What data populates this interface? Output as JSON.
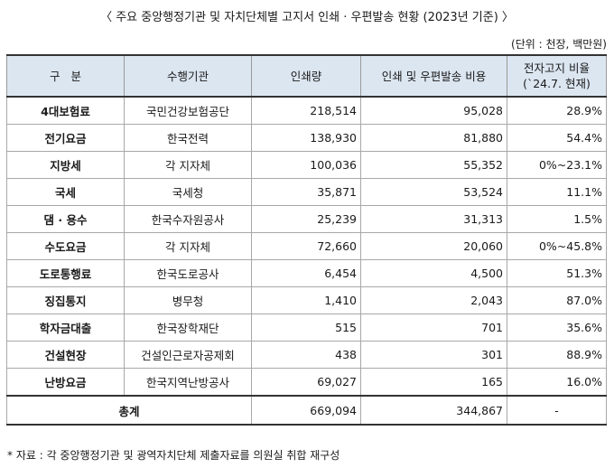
{
  "title": "〈 주요 중앙행정기관 및 자치단체별 고지서 인쇄 · 우편발송 현황 (2023년 기준) 〉",
  "unit_note": "(단위 : 천장, 백만원)",
  "headers": {
    "category": "구   분",
    "agency": "수행기관",
    "print_volume": "인쇄량",
    "cost": "인쇄 및 우편발송 비용",
    "ratio_line1": "전자고지 비율",
    "ratio_line2": "(`24.7. 현재)"
  },
  "rows": [
    {
      "category": "4대보험료",
      "agency": "국민건강보험공단",
      "volume": "218,514",
      "cost": "95,028",
      "ratio": "28.9%"
    },
    {
      "category": "전기요금",
      "agency": "한국전력",
      "volume": "138,930",
      "cost": "81,880",
      "ratio": "54.4%"
    },
    {
      "category": "지방세",
      "agency": "각 지자체",
      "volume": "100,036",
      "cost": "55,352",
      "ratio": "0%~23.1%"
    },
    {
      "category": "국세",
      "agency": "국세청",
      "volume": "35,871",
      "cost": "53,524",
      "ratio": "11.1%"
    },
    {
      "category": "댐 · 용수",
      "agency": "한국수자원공사",
      "volume": "25,239",
      "cost": "31,313",
      "ratio": "1.5%"
    },
    {
      "category": "수도요금",
      "agency": "각 지자체",
      "volume": "72,660",
      "cost": "20,060",
      "ratio": "0%~45.8%"
    },
    {
      "category": "도로통행료",
      "agency": "한국도로공사",
      "volume": "6,454",
      "cost": "4,500",
      "ratio": "51.3%"
    },
    {
      "category": "징집통지",
      "agency": "병무청",
      "volume": "1,410",
      "cost": "2,043",
      "ratio": "87.0%"
    },
    {
      "category": "학자금대출",
      "agency": "한국장학재단",
      "volume": "515",
      "cost": "701",
      "ratio": "35.6%"
    },
    {
      "category": "건설현장",
      "agency": "건설인근로자공제회",
      "volume": "438",
      "cost": "301",
      "ratio": "88.9%"
    },
    {
      "category": "난방요금",
      "agency": "한국지역난방공사",
      "volume": "69,027",
      "cost": "165",
      "ratio": "16.0%"
    }
  ],
  "total": {
    "label": "총계",
    "volume": "669,094",
    "cost": "344,867",
    "ratio": "-"
  },
  "source": "* 자료 : 각 중앙행정기관 및 광역자치단체 제출자료를 의원실 취합 재구성"
}
